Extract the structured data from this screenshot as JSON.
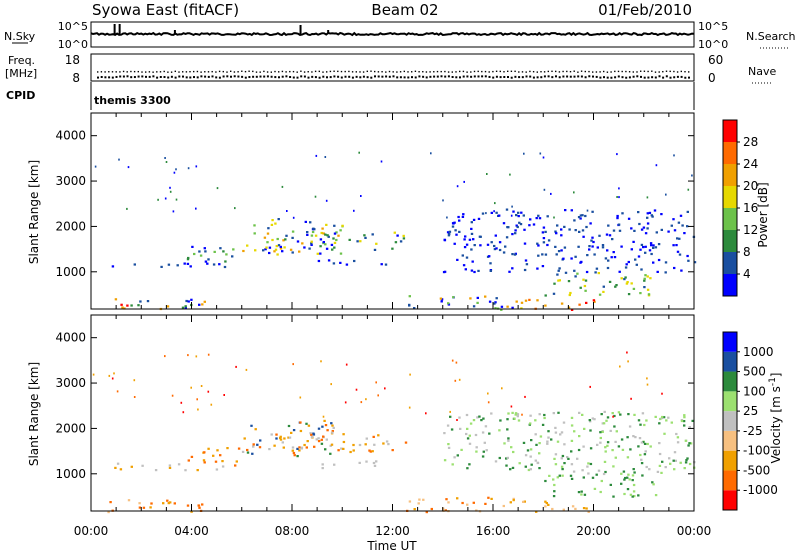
{
  "header": {
    "station": "Syowa East (fitACF)",
    "beam": "Beam 02",
    "date": "01/Feb/2010"
  },
  "noise_panel": {
    "left_label": "N.Sky",
    "right_label": "N.Search",
    "tick_top": "10^5",
    "tick_bottom": "10^0"
  },
  "freq_panel": {
    "left_label_1": "Freq.",
    "left_label_2": "[MHz]",
    "left_tick_top": "18",
    "left_tick_bottom": "8",
    "right_label": "Nave",
    "right_tick_top": "60",
    "right_tick_bottom": "0"
  },
  "cpid_panel": {
    "label": "CPID",
    "value": "themis 3300"
  },
  "colors": {
    "power": [
      "#0000ff",
      "#1a4fa0",
      "#2c8a3c",
      "#6cc24a",
      "#e6d800",
      "#f0a000",
      "#ff6a00",
      "#ff0000"
    ],
    "velocity": [
      "#ff0000",
      "#ff6a00",
      "#f0a000",
      "#f7c080",
      "#c0c0c0",
      "#9ce070",
      "#2c8a3c",
      "#1a4fa0",
      "#0000ff"
    ]
  },
  "chart_data": [
    {
      "type": "heatmap",
      "name": "power",
      "xlabel": "",
      "ylabel": "Slant Range [km]",
      "x_ticks": [
        "00:00",
        "04:00",
        "08:00",
        "12:00",
        "16:00",
        "20:00",
        "00:00"
      ],
      "y_ticks": [
        1000,
        2000,
        3000,
        4000
      ],
      "ylim": [
        180,
        4500
      ],
      "colorbar": {
        "label": "Power [dB]",
        "ticks": [
          "4",
          "8",
          "12",
          "16",
          "20",
          "24",
          "28"
        ]
      },
      "echo_regions": [
        {
          "t": [
            0.2,
            4.5
          ],
          "r": [
            180,
            450
          ],
          "levels": [
            0,
            1,
            2,
            5,
            7
          ]
        },
        {
          "t": [
            0.8,
            5.5
          ],
          "r": [
            1100,
            1250
          ],
          "levels": [
            0,
            1
          ]
        },
        {
          "t": [
            3.8,
            6.0
          ],
          "r": [
            1200,
            1600
          ],
          "levels": [
            0,
            1,
            2,
            3
          ]
        },
        {
          "t": [
            6.0,
            10.0
          ],
          "r": [
            1400,
            2200
          ],
          "levels": [
            0,
            1,
            3,
            4,
            5
          ]
        },
        {
          "t": [
            7.0,
            12.5
          ],
          "r": [
            1500,
            1900
          ],
          "levels": [
            0,
            1,
            2,
            4
          ]
        },
        {
          "t": [
            9.0,
            12.0
          ],
          "r": [
            1150,
            1300
          ],
          "levels": [
            0,
            1
          ]
        },
        {
          "t": [
            12.5,
            17.0
          ],
          "r": [
            180,
            500
          ],
          "levels": [
            0,
            1,
            3,
            5
          ]
        },
        {
          "t": [
            16.5,
            20.0
          ],
          "r": [
            180,
            420
          ],
          "levels": [
            4,
            5,
            6,
            7
          ]
        },
        {
          "t": [
            18.0,
            22.5
          ],
          "r": [
            500,
            1000
          ],
          "levels": [
            1,
            2,
            3,
            4
          ]
        },
        {
          "t": [
            14.0,
            24.0
          ],
          "r": [
            1000,
            2400
          ],
          "levels": [
            0,
            1
          ]
        }
      ]
    },
    {
      "type": "heatmap",
      "name": "velocity",
      "xlabel": "Time UT",
      "ylabel": "Slant Range [km]",
      "x_ticks": [
        "00:00",
        "04:00",
        "08:00",
        "12:00",
        "16:00",
        "20:00",
        "00:00"
      ],
      "y_ticks": [
        1000,
        2000,
        3000,
        4000
      ],
      "ylim": [
        180,
        4500
      ],
      "colorbar": {
        "label": "Velocity [m s^-1]",
        "ticks": [
          "-1000",
          "-500",
          "-100",
          "-25",
          "25",
          "100",
          "500",
          "1000"
        ]
      },
      "echo_regions": [
        {
          "t": [
            0.2,
            4.5
          ],
          "r": [
            180,
            450
          ],
          "levels": [
            1,
            2,
            3
          ]
        },
        {
          "t": [
            0.8,
            5.5
          ],
          "r": [
            1100,
            1250
          ],
          "levels": [
            2,
            4
          ]
        },
        {
          "t": [
            3.8,
            6.0
          ],
          "r": [
            1200,
            1600
          ],
          "levels": [
            1,
            2
          ]
        },
        {
          "t": [
            6.0,
            10.0
          ],
          "r": [
            1400,
            2200
          ],
          "levels": [
            1,
            2,
            4,
            6,
            7
          ]
        },
        {
          "t": [
            7.0,
            12.5
          ],
          "r": [
            1500,
            1900
          ],
          "levels": [
            1,
            2,
            4
          ]
        },
        {
          "t": [
            9.0,
            12.0
          ],
          "r": [
            1150,
            1300
          ],
          "levels": [
            4
          ]
        },
        {
          "t": [
            12.5,
            17.0
          ],
          "r": [
            180,
            500
          ],
          "levels": [
            1,
            2,
            3
          ]
        },
        {
          "t": [
            16.5,
            20.0
          ],
          "r": [
            180,
            420
          ],
          "levels": [
            2,
            3
          ]
        },
        {
          "t": [
            18.0,
            22.5
          ],
          "r": [
            500,
            1000
          ],
          "levels": [
            5,
            6
          ]
        },
        {
          "t": [
            14.0,
            24.0
          ],
          "r": [
            1000,
            2400
          ],
          "levels": [
            4,
            5,
            6
          ]
        }
      ]
    }
  ]
}
